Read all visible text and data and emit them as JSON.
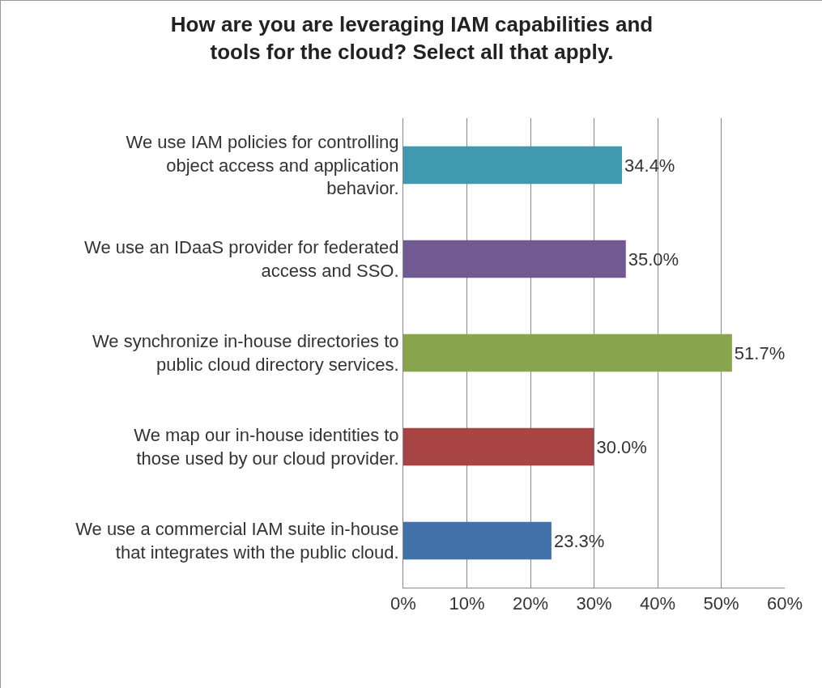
{
  "chart_data": {
    "type": "bar",
    "orientation": "horizontal",
    "title": "How are you are leveraging IAM capabilities and tools for the cloud? Select all that apply.",
    "categories": [
      "We use IAM policies for controlling object access and application behavior.",
      "We use an IDaaS provider for federated access and SSO.",
      "We synchronize in-house directories to public cloud directory services.",
      "We map our in-house identities to those used by our cloud provider.",
      "We use a commercial IAM suite in-house that integrates with the public cloud."
    ],
    "values": [
      34.4,
      35.0,
      51.7,
      30.0,
      23.3
    ],
    "colors": [
      "#4199b0",
      "#715991",
      "#88a44c",
      "#a84443",
      "#4372a8"
    ],
    "value_labels": [
      "34.4%",
      "35.0%",
      "51.7%",
      "30.0%",
      "23.3%"
    ],
    "xlim": [
      0,
      60
    ],
    "xticks": [
      {
        "value": 0,
        "label": "0%"
      },
      {
        "value": 10,
        "label": "10%"
      },
      {
        "value": 20,
        "label": "20%"
      },
      {
        "value": 30,
        "label": "30%"
      },
      {
        "value": 40,
        "label": "40%"
      },
      {
        "value": 50,
        "label": "50%"
      },
      {
        "value": 60,
        "label": "60%"
      }
    ],
    "grid": "x",
    "legend": false
  }
}
